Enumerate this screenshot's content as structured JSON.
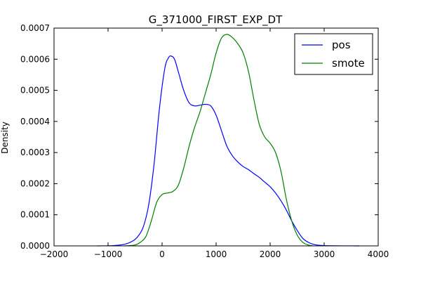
{
  "chart_data": {
    "type": "line",
    "title": "G_371000_FIRST_EXP_DT",
    "xlabel": "",
    "ylabel": "Density",
    "xlim": [
      -2000,
      4000
    ],
    "ylim": [
      0,
      0.0007
    ],
    "x_ticks": [
      -2000,
      -1000,
      0,
      1000,
      2000,
      3000,
      4000
    ],
    "y_ticks": [
      0.0,
      0.0001,
      0.0002,
      0.0003,
      0.0004,
      0.0005,
      0.0006,
      0.0007
    ],
    "x_tick_labels": [
      "−2000",
      "−1000",
      "0",
      "1000",
      "2000",
      "3000",
      "4000"
    ],
    "y_tick_labels": [
      "0.0000",
      "0.0001",
      "0.0002",
      "0.0003",
      "0.0004",
      "0.0005",
      "0.0006",
      "0.0007"
    ],
    "legend_position": "top-right",
    "grid": false,
    "series": [
      {
        "name": "pos",
        "color": "#0000ff",
        "points": [
          [
            -1200,
            0.0
          ],
          [
            -900,
            1e-06
          ],
          [
            -700,
            5e-06
          ],
          [
            -550,
            1.5e-05
          ],
          [
            -450,
            3e-05
          ],
          [
            -350,
            6e-05
          ],
          [
            -250,
            0.00013
          ],
          [
            -150,
            0.00026
          ],
          [
            -50,
            0.00044
          ],
          [
            50,
            0.00057
          ],
          [
            120,
            0.000605
          ],
          [
            170,
            0.00061
          ],
          [
            230,
            0.0006
          ],
          [
            300,
            0.00056
          ],
          [
            400,
            0.0005
          ],
          [
            500,
            0.00046
          ],
          [
            600,
            0.00045
          ],
          [
            700,
            0.000452
          ],
          [
            800,
            0.000455
          ],
          [
            900,
            0.00045
          ],
          [
            1000,
            0.00042
          ],
          [
            1100,
            0.00037
          ],
          [
            1200,
            0.00032
          ],
          [
            1300,
            0.00029
          ],
          [
            1400,
            0.00027
          ],
          [
            1500,
            0.000255
          ],
          [
            1600,
            0.000245
          ],
          [
            1700,
            0.000232
          ],
          [
            1800,
            0.00022
          ],
          [
            1900,
            0.000205
          ],
          [
            2000,
            0.00019
          ],
          [
            2100,
            0.00017
          ],
          [
            2200,
            0.000145
          ],
          [
            2300,
            0.000115
          ],
          [
            2400,
            8e-05
          ],
          [
            2500,
            5e-05
          ],
          [
            2600,
            2.5e-05
          ],
          [
            2700,
            1.2e-05
          ],
          [
            2800,
            5e-06
          ],
          [
            3000,
            1e-06
          ],
          [
            3650,
            0.0
          ]
        ]
      },
      {
        "name": "smote",
        "color": "#008000",
        "points": [
          [
            -700,
            0.0
          ],
          [
            -500,
            3e-06
          ],
          [
            -400,
            1.2e-05
          ],
          [
            -300,
            3e-05
          ],
          [
            -200,
            8e-05
          ],
          [
            -100,
            0.00014
          ],
          [
            0,
            0.000165
          ],
          [
            100,
            0.00017
          ],
          [
            200,
            0.000175
          ],
          [
            300,
            0.000195
          ],
          [
            400,
            0.00025
          ],
          [
            500,
            0.00032
          ],
          [
            600,
            0.00038
          ],
          [
            700,
            0.00043
          ],
          [
            800,
            0.00049
          ],
          [
            900,
            0.00055
          ],
          [
            1000,
            0.00062
          ],
          [
            1100,
            0.000668
          ],
          [
            1200,
            0.00068
          ],
          [
            1300,
            0.00067
          ],
          [
            1400,
            0.00065
          ],
          [
            1500,
            0.00062
          ],
          [
            1600,
            0.00056
          ],
          [
            1700,
            0.00047
          ],
          [
            1800,
            0.00039
          ],
          [
            1900,
            0.00035
          ],
          [
            2000,
            0.00033
          ],
          [
            2100,
            0.0003
          ],
          [
            2200,
            0.00024
          ],
          [
            2300,
            0.00015
          ],
          [
            2400,
            8e-05
          ],
          [
            2500,
            3.5e-05
          ],
          [
            2600,
            1.2e-05
          ],
          [
            2700,
            3e-06
          ],
          [
            2800,
            0.0
          ]
        ]
      }
    ]
  }
}
